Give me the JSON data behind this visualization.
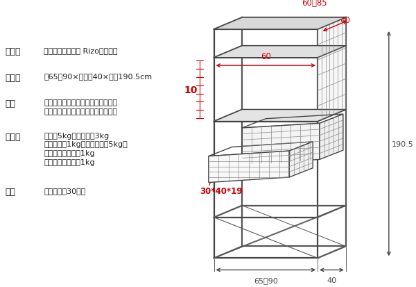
{
  "bg_color": "#ffffff",
  "text_color": "#1a1a1a",
  "red_color": "#cc0000",
  "gray_color": "#888888",
  "dark_color": "#444444",
  "line_color": "#555555",
  "specs": [
    {
      "label": "商品名",
      "value": "ランドリーラック Rizo（リソ）"
    },
    {
      "label": "サイズ",
      "value": "幅65〜90×奥行き40×高さ190.5cm"
    },
    {
      "label": "材質",
      "value": "合成樹脂化粧繊維板（塩化ビニル）\nスチール（エポキシ樹脂粉体塗装）"
    },
    {
      "label": "耐荷重",
      "value": "棚：各5kg、カゴ：各3kg\n延長バー：1kg（各棚全体で5kg）\nネットフレーム：1kg\nサイドフレーム：1kg"
    },
    {
      "label": "備考",
      "value": "組立式（約30分）"
    }
  ],
  "dim_top_label": "60〜85",
  "dim_40_label": "40",
  "dim_60_label": "60",
  "dim_10_label": "10",
  "dim_basket_label": "30*40*19",
  "dim_height_label": "190.5",
  "dim_width_label": "65〜90",
  "dim_depth_label": "40"
}
